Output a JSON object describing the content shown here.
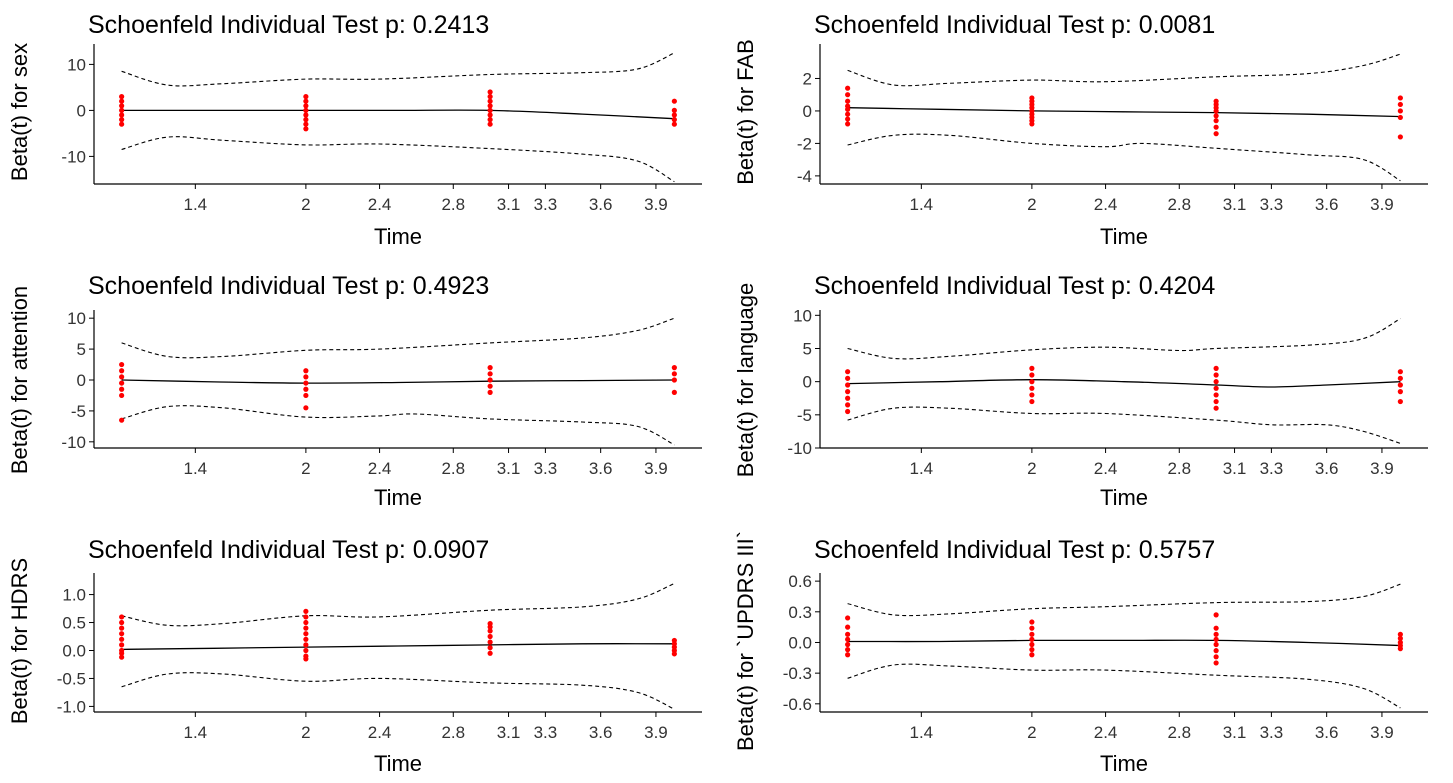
{
  "colors": {
    "points": "#ff0000",
    "line": "#000000",
    "bands": "#000000",
    "axis": "#000000"
  },
  "chart_data": [
    {
      "type": "scatter",
      "title": "Schoenfeld Individual Test p: 0.2413",
      "xlabel": "Time",
      "ylabel": "Beta(t) for sex",
      "xticks": [
        1.4,
        2,
        2.4,
        2.8,
        3.1,
        3.3,
        3.6,
        3.9
      ],
      "xtick_labels": [
        "1.4",
        "2",
        "2.4",
        "2.8",
        "3.1",
        "3.3",
        "3.6",
        "3.9"
      ],
      "yticks": [
        10,
        0,
        -10
      ],
      "ytick_labels": [
        "10",
        "0",
        "-10"
      ],
      "ylim": [
        -16,
        14
      ],
      "fit": {
        "x": [
          1.0,
          1.2,
          2.0,
          2.5,
          3.0,
          3.5,
          4.0
        ],
        "y": [
          0,
          0,
          0,
          0,
          0,
          -0.8,
          -1.8
        ]
      },
      "upper": {
        "x": [
          1.0,
          1.25,
          1.55,
          2.0,
          2.4,
          3.0,
          3.5,
          3.8,
          4.0
        ],
        "y": [
          8.5,
          5.5,
          5.8,
          6.8,
          6.8,
          7.8,
          8.2,
          9.0,
          12.5
        ]
      },
      "lower": {
        "x": [
          1.0,
          1.25,
          1.55,
          2.0,
          2.4,
          3.0,
          3.5,
          3.8,
          4.0
        ],
        "y": [
          -8.5,
          -5.8,
          -6.5,
          -7.5,
          -7.3,
          -8.3,
          -9.5,
          -11.0,
          -15.5
        ]
      },
      "points": [
        [
          1.0,
          3
        ],
        [
          1.0,
          2
        ],
        [
          1.0,
          1
        ],
        [
          1.0,
          0
        ],
        [
          1.0,
          -1
        ],
        [
          1.0,
          -2
        ],
        [
          1.0,
          -3
        ],
        [
          2.0,
          3
        ],
        [
          2.0,
          2
        ],
        [
          2.0,
          1
        ],
        [
          2.0,
          0
        ],
        [
          2.0,
          -1
        ],
        [
          2.0,
          -2
        ],
        [
          2.0,
          -3
        ],
        [
          2.0,
          -4
        ],
        [
          3.0,
          4
        ],
        [
          3.0,
          3
        ],
        [
          3.0,
          2
        ],
        [
          3.0,
          1
        ],
        [
          3.0,
          0
        ],
        [
          3.0,
          -1
        ],
        [
          3.0,
          -2
        ],
        [
          3.0,
          -3
        ],
        [
          4.0,
          2
        ],
        [
          4.0,
          0
        ],
        [
          4.0,
          -1
        ],
        [
          4.0,
          -2
        ],
        [
          4.0,
          -3
        ]
      ]
    },
    {
      "type": "scatter",
      "title": "Schoenfeld Individual Test p: 0.0081",
      "xlabel": "Time",
      "ylabel": "Beta(t) for FAB",
      "xticks": [
        1.4,
        2,
        2.4,
        2.8,
        3.1,
        3.3,
        3.6,
        3.9
      ],
      "xtick_labels": [
        "1.4",
        "2",
        "2.4",
        "2.8",
        "3.1",
        "3.3",
        "3.6",
        "3.9"
      ],
      "yticks": [
        2,
        0,
        -2,
        -4
      ],
      "ytick_labels": [
        "2",
        "0",
        "-2",
        "-4"
      ],
      "ylim": [
        -4.5,
        4
      ],
      "fit": {
        "x": [
          1.0,
          1.5,
          2.0,
          2.5,
          3.0,
          3.5,
          4.0
        ],
        "y": [
          0.2,
          0.1,
          0.0,
          -0.05,
          -0.1,
          -0.2,
          -0.35
        ]
      },
      "upper": {
        "x": [
          1.0,
          1.25,
          1.55,
          2.0,
          2.4,
          3.0,
          3.5,
          3.8,
          4.0
        ],
        "y": [
          2.5,
          1.6,
          1.7,
          1.9,
          1.8,
          2.1,
          2.3,
          2.8,
          3.5
        ]
      },
      "lower": {
        "x": [
          1.0,
          1.25,
          1.55,
          2.0,
          2.4,
          2.6,
          3.0,
          3.5,
          3.8,
          4.0
        ],
        "y": [
          -2.1,
          -1.5,
          -1.5,
          -2.0,
          -2.2,
          -2.0,
          -2.3,
          -2.7,
          -3.0,
          -4.3
        ]
      },
      "points": [
        [
          1.0,
          1.4
        ],
        [
          1.0,
          1.0
        ],
        [
          1.0,
          0.6
        ],
        [
          1.0,
          0.3
        ],
        [
          1.0,
          0.1
        ],
        [
          1.0,
          -0.2
        ],
        [
          1.0,
          -0.5
        ],
        [
          1.0,
          -0.8
        ],
        [
          2.0,
          0.8
        ],
        [
          2.0,
          0.6
        ],
        [
          2.0,
          0.4
        ],
        [
          2.0,
          0.2
        ],
        [
          2.0,
          0.0
        ],
        [
          2.0,
          -0.2
        ],
        [
          2.0,
          -0.4
        ],
        [
          2.0,
          -0.6
        ],
        [
          2.0,
          -0.8
        ],
        [
          3.0,
          0.6
        ],
        [
          3.0,
          0.4
        ],
        [
          3.0,
          0.2
        ],
        [
          3.0,
          0.0
        ],
        [
          3.0,
          -0.3
        ],
        [
          3.0,
          -0.6
        ],
        [
          3.0,
          -1.0
        ],
        [
          3.0,
          -1.4
        ],
        [
          4.0,
          0.8
        ],
        [
          4.0,
          0.4
        ],
        [
          4.0,
          0.0
        ],
        [
          4.0,
          -0.4
        ],
        [
          4.0,
          -1.6
        ]
      ]
    },
    {
      "type": "scatter",
      "title": "Schoenfeld Individual Test p: 0.4923",
      "xlabel": "Time",
      "ylabel": "Beta(t) for attention",
      "xticks": [
        1.4,
        2,
        2.4,
        2.8,
        3.1,
        3.3,
        3.6,
        3.9
      ],
      "xtick_labels": [
        "1.4",
        "2",
        "2.4",
        "2.8",
        "3.1",
        "3.3",
        "3.6",
        "3.9"
      ],
      "yticks": [
        10,
        5,
        0,
        -5,
        -10
      ],
      "ytick_labels": [
        "10",
        "5",
        "0",
        "-5",
        "-10"
      ],
      "ylim": [
        -11,
        11
      ],
      "fit": {
        "x": [
          1.0,
          1.5,
          2.0,
          2.5,
          3.0,
          3.5,
          4.0
        ],
        "y": [
          0,
          -0.3,
          -0.5,
          -0.4,
          -0.2,
          -0.1,
          0
        ]
      },
      "upper": {
        "x": [
          1.0,
          1.25,
          1.55,
          2.0,
          2.4,
          3.0,
          3.5,
          3.8,
          4.0
        ],
        "y": [
          6.0,
          3.8,
          3.8,
          4.8,
          5.0,
          6.0,
          6.8,
          8.0,
          10.0
        ]
      },
      "lower": {
        "x": [
          1.0,
          1.25,
          1.55,
          2.0,
          2.4,
          2.6,
          3.0,
          3.5,
          3.8,
          4.0
        ],
        "y": [
          -6.3,
          -4.3,
          -4.5,
          -6.0,
          -5.8,
          -5.5,
          -6.3,
          -6.8,
          -7.5,
          -10.5
        ]
      },
      "points": [
        [
          1.0,
          2.5
        ],
        [
          1.0,
          1.5
        ],
        [
          1.0,
          0.5
        ],
        [
          1.0,
          -0.5
        ],
        [
          1.0,
          -1.5
        ],
        [
          1.0,
          -2.5
        ],
        [
          1.0,
          -6.5
        ],
        [
          2.0,
          1.5
        ],
        [
          2.0,
          0.5
        ],
        [
          2.0,
          -0.5
        ],
        [
          2.0,
          -1.5
        ],
        [
          2.0,
          -2.5
        ],
        [
          2.0,
          -4.5
        ],
        [
          3.0,
          2.0
        ],
        [
          3.0,
          1.0
        ],
        [
          3.0,
          0.0
        ],
        [
          3.0,
          -1.0
        ],
        [
          3.0,
          -2.0
        ],
        [
          4.0,
          2.0
        ],
        [
          4.0,
          1.0
        ],
        [
          4.0,
          0.0
        ],
        [
          4.0,
          -2.0
        ]
      ]
    },
    {
      "type": "scatter",
      "title": "Schoenfeld Individual Test p: 0.4204",
      "xlabel": "Time",
      "ylabel": "Beta(t) for language",
      "xticks": [
        1.4,
        2,
        2.4,
        2.8,
        3.1,
        3.3,
        3.6,
        3.9
      ],
      "xtick_labels": [
        "1.4",
        "2",
        "2.4",
        "2.8",
        "3.1",
        "3.3",
        "3.6",
        "3.9"
      ],
      "yticks": [
        10,
        5,
        0,
        -5,
        -10
      ],
      "ytick_labels": [
        "10",
        "5",
        "0",
        "-5",
        "-10"
      ],
      "ylim": [
        -10,
        10.5
      ],
      "fit": {
        "x": [
          1.0,
          1.5,
          2.0,
          2.5,
          3.0,
          3.3,
          3.6,
          4.0
        ],
        "y": [
          -0.3,
          0.0,
          0.3,
          0.0,
          -0.5,
          -0.8,
          -0.5,
          0.0
        ]
      },
      "upper": {
        "x": [
          1.0,
          1.25,
          1.55,
          2.0,
          2.4,
          2.8,
          3.0,
          3.5,
          3.8,
          4.0
        ],
        "y": [
          5.0,
          3.5,
          3.8,
          4.8,
          5.2,
          4.7,
          5.0,
          5.5,
          6.5,
          9.5
        ]
      },
      "lower": {
        "x": [
          1.0,
          1.25,
          1.55,
          2.0,
          2.4,
          3.0,
          3.3,
          3.6,
          3.8,
          4.0
        ],
        "y": [
          -5.8,
          -4.0,
          -4.0,
          -4.8,
          -4.8,
          -5.8,
          -6.5,
          -6.5,
          -7.5,
          -9.3
        ]
      },
      "points": [
        [
          1.0,
          1.5
        ],
        [
          1.0,
          0.5
        ],
        [
          1.0,
          -0.5
        ],
        [
          1.0,
          -1.5
        ],
        [
          1.0,
          -2.5
        ],
        [
          1.0,
          -3.5
        ],
        [
          1.0,
          -4.5
        ],
        [
          2.0,
          2.0
        ],
        [
          2.0,
          1.0
        ],
        [
          2.0,
          0.0
        ],
        [
          2.0,
          -1.0
        ],
        [
          2.0,
          -2.0
        ],
        [
          2.0,
          -3.0
        ],
        [
          3.0,
          2.0
        ],
        [
          3.0,
          1.0
        ],
        [
          3.0,
          0.0
        ],
        [
          3.0,
          -1.0
        ],
        [
          3.0,
          -2.0
        ],
        [
          3.0,
          -3.0
        ],
        [
          3.0,
          -4.0
        ],
        [
          4.0,
          1.5
        ],
        [
          4.0,
          0.5
        ],
        [
          4.0,
          -0.5
        ],
        [
          4.0,
          -1.5
        ],
        [
          4.0,
          -3.0
        ]
      ]
    },
    {
      "type": "scatter",
      "title": "Schoenfeld Individual Test p: 0.0907",
      "xlabel": "Time",
      "ylabel": "Beta(t) for HDRS",
      "xticks": [
        1.4,
        2,
        2.4,
        2.8,
        3.1,
        3.3,
        3.6,
        3.9
      ],
      "xtick_labels": [
        "1.4",
        "2",
        "2.4",
        "2.8",
        "3.1",
        "3.3",
        "3.6",
        "3.9"
      ],
      "yticks": [
        1.0,
        0.5,
        0.0,
        -0.5,
        -1.0
      ],
      "ytick_labels": [
        "1.0",
        "0.5",
        "0.0",
        "-0.5",
        "-1.0"
      ],
      "ylim": [
        -1.1,
        1.35
      ],
      "fit": {
        "x": [
          1.0,
          1.5,
          2.0,
          2.5,
          3.0,
          3.5,
          4.0
        ],
        "y": [
          0.02,
          0.04,
          0.06,
          0.08,
          0.1,
          0.12,
          0.12
        ]
      },
      "upper": {
        "x": [
          1.0,
          1.25,
          1.55,
          2.0,
          2.4,
          3.0,
          3.5,
          3.8,
          4.0
        ],
        "y": [
          0.62,
          0.45,
          0.48,
          0.62,
          0.6,
          0.72,
          0.78,
          0.92,
          1.2
        ]
      },
      "lower": {
        "x": [
          1.0,
          1.25,
          1.55,
          2.0,
          2.4,
          3.0,
          3.5,
          3.8,
          4.0
        ],
        "y": [
          -0.65,
          -0.42,
          -0.42,
          -0.55,
          -0.5,
          -0.58,
          -0.62,
          -0.75,
          -1.05
        ]
      },
      "points": [
        [
          1.0,
          0.6
        ],
        [
          1.0,
          0.5
        ],
        [
          1.0,
          0.4
        ],
        [
          1.0,
          0.3
        ],
        [
          1.0,
          0.2
        ],
        [
          1.0,
          0.1
        ],
        [
          1.0,
          0.0
        ],
        [
          1.0,
          -0.05
        ],
        [
          1.0,
          -0.12
        ],
        [
          2.0,
          0.7
        ],
        [
          2.0,
          0.6
        ],
        [
          2.0,
          0.5
        ],
        [
          2.0,
          0.4
        ],
        [
          2.0,
          0.3
        ],
        [
          2.0,
          0.2
        ],
        [
          2.0,
          0.1
        ],
        [
          2.0,
          0.0
        ],
        [
          2.0,
          -0.1
        ],
        [
          2.0,
          -0.15
        ],
        [
          3.0,
          0.48
        ],
        [
          3.0,
          0.42
        ],
        [
          3.0,
          0.35
        ],
        [
          3.0,
          0.25
        ],
        [
          3.0,
          0.15
        ],
        [
          3.0,
          0.05
        ],
        [
          3.0,
          -0.05
        ],
        [
          4.0,
          0.18
        ],
        [
          4.0,
          0.12
        ],
        [
          4.0,
          0.06
        ],
        [
          4.0,
          0.0
        ],
        [
          4.0,
          -0.06
        ]
      ]
    },
    {
      "type": "scatter",
      "title": "Schoenfeld Individual Test p: 0.5757",
      "xlabel": "Time",
      "ylabel": "Beta(t) for `UPDRS III`",
      "xticks": [
        1.4,
        2,
        2.4,
        2.8,
        3.1,
        3.3,
        3.6,
        3.9
      ],
      "xtick_labels": [
        "1.4",
        "2",
        "2.4",
        "2.8",
        "3.1",
        "3.3",
        "3.6",
        "3.9"
      ],
      "yticks": [
        0.6,
        0.3,
        0.0,
        -0.3,
        -0.6
      ],
      "ytick_labels": [
        "0.6",
        "0.3",
        "0.0",
        "-0.3",
        "-0.6"
      ],
      "ylim": [
        -0.68,
        0.66
      ],
      "fit": {
        "x": [
          1.0,
          1.5,
          2.0,
          2.5,
          3.0,
          3.5,
          4.0
        ],
        "y": [
          0.01,
          0.01,
          0.02,
          0.02,
          0.02,
          0.0,
          -0.03
        ]
      },
      "upper": {
        "x": [
          1.0,
          1.25,
          1.55,
          2.0,
          2.4,
          3.0,
          3.5,
          3.8,
          4.0
        ],
        "y": [
          0.38,
          0.27,
          0.28,
          0.33,
          0.35,
          0.39,
          0.4,
          0.45,
          0.57
        ]
      },
      "lower": {
        "x": [
          1.0,
          1.25,
          1.55,
          2.0,
          2.4,
          3.0,
          3.5,
          3.8,
          4.0
        ],
        "y": [
          -0.35,
          -0.22,
          -0.23,
          -0.27,
          -0.27,
          -0.32,
          -0.36,
          -0.45,
          -0.64
        ]
      },
      "points": [
        [
          1.0,
          0.24
        ],
        [
          1.0,
          0.15
        ],
        [
          1.0,
          0.08
        ],
        [
          1.0,
          0.03
        ],
        [
          1.0,
          -0.02
        ],
        [
          1.0,
          -0.07
        ],
        [
          1.0,
          -0.12
        ],
        [
          2.0,
          0.2
        ],
        [
          2.0,
          0.14
        ],
        [
          2.0,
          0.08
        ],
        [
          2.0,
          0.03
        ],
        [
          2.0,
          -0.02
        ],
        [
          2.0,
          -0.07
        ],
        [
          2.0,
          -0.12
        ],
        [
          3.0,
          0.27
        ],
        [
          3.0,
          0.14
        ],
        [
          3.0,
          0.08
        ],
        [
          3.0,
          0.03
        ],
        [
          3.0,
          -0.02
        ],
        [
          3.0,
          -0.08
        ],
        [
          3.0,
          -0.14
        ],
        [
          3.0,
          -0.2
        ],
        [
          4.0,
          0.08
        ],
        [
          4.0,
          0.04
        ],
        [
          4.0,
          0.0
        ],
        [
          4.0,
          -0.03
        ],
        [
          4.0,
          -0.06
        ]
      ]
    }
  ]
}
